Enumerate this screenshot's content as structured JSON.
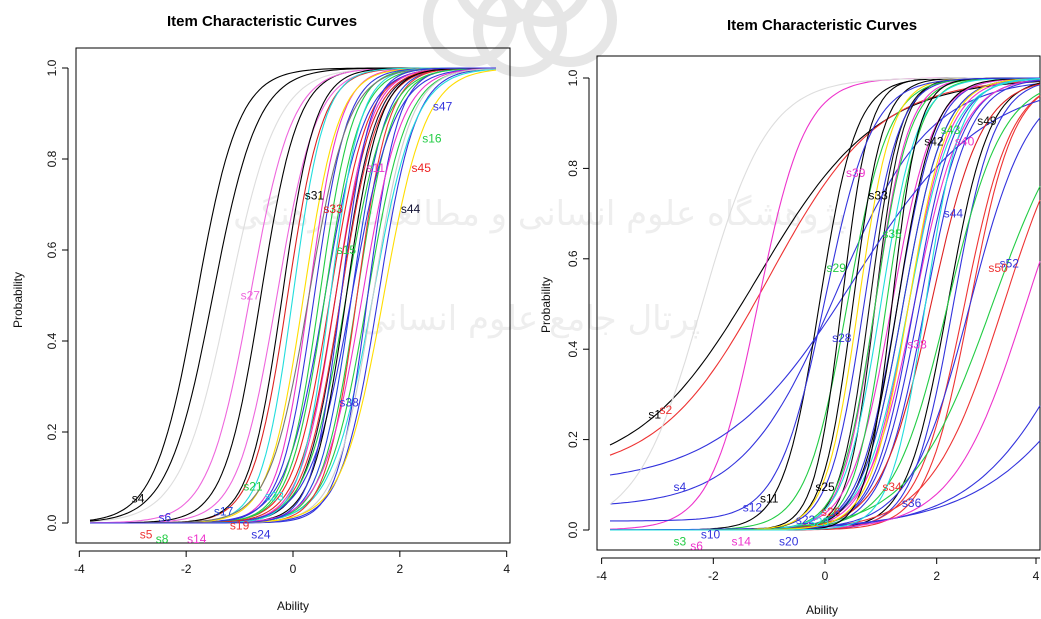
{
  "chart_data": [
    {
      "type": "line",
      "title": "Item Characteristic Curves",
      "xlabel": "Ability",
      "ylabel": "Probability",
      "xlim": [
        -3.8,
        3.8
      ],
      "ylim": [
        0,
        1
      ],
      "xticks": [
        -4,
        -2,
        0,
        2,
        4
      ],
      "yticks": [
        0.0,
        0.2,
        0.4,
        0.6,
        0.8,
        1.0
      ],
      "grid": false,
      "series": [
        {
          "name": "s4",
          "a": 1.5,
          "b": -1.8,
          "c": 0,
          "color": "#000000",
          "label_x": -2.9,
          "label_y": 0.054
        },
        {
          "name": "s27",
          "a": 1.6,
          "b": -0.3,
          "c": 0,
          "color": "#ee66dd",
          "label_x": -0.8,
          "label_y": 0.5
        },
        {
          "name": "s31",
          "a": 1.7,
          "b": -0.6,
          "c": 0,
          "color": "#000000",
          "label_x": 0.4,
          "label_y": 0.72
        },
        {
          "name": "s33",
          "a": 1.8,
          "b": -0.1,
          "c": 0,
          "color": "#dd2222",
          "label_x": 0.75,
          "label_y": 0.69
        },
        {
          "name": "s11",
          "a": 2.0,
          "b": 0.3,
          "c": 0,
          "color": "#ee33cc",
          "label_x": 1.55,
          "label_y": 0.78
        },
        {
          "name": "s44",
          "a": 1.8,
          "b": 0.9,
          "c": 0,
          "color": "#111133",
          "label_x": 2.2,
          "label_y": 0.69
        },
        {
          "name": "s45",
          "a": 1.7,
          "b": 0.7,
          "c": 0,
          "color": "#ee2222",
          "label_x": 2.4,
          "label_y": 0.78
        },
        {
          "name": "s47",
          "a": 1.6,
          "b": 0.6,
          "c": 0,
          "color": "#3333dd",
          "label_x": 2.8,
          "label_y": 0.915
        },
        {
          "name": "s16",
          "a": 1.9,
          "b": 0.5,
          "c": 0,
          "color": "#22cc44",
          "label_x": 2.6,
          "label_y": 0.845
        },
        {
          "name": "s38",
          "a": 1.7,
          "b": 1.6,
          "c": 0,
          "color": "#3333dd",
          "label_x": 1.05,
          "label_y": 0.265
        },
        {
          "name": "s15",
          "a": 1.8,
          "b": 1.2,
          "c": 0,
          "color": "#22cc44",
          "label_x": 1.0,
          "label_y": 0.6
        },
        {
          "name": "s21",
          "a": 1.6,
          "b": 1.4,
          "c": 0,
          "color": "#22cc44",
          "label_x": -0.75,
          "label_y": 0.08
        },
        {
          "name": "s23",
          "a": 1.5,
          "b": 1.5,
          "c": 0,
          "color": "#22dddd",
          "label_x": -0.35,
          "label_y": 0.058
        },
        {
          "name": "s17",
          "a": 1.9,
          "b": 1.1,
          "c": 0,
          "color": "#2244dd",
          "label_x": -1.3,
          "label_y": 0.025
        },
        {
          "name": "s19",
          "a": 2.0,
          "b": 1.2,
          "c": 0,
          "color": "#ee3333",
          "label_x": -1.0,
          "label_y": -0.005
        },
        {
          "name": "s24",
          "a": 2.1,
          "b": 1.4,
          "c": 0,
          "color": "#3333dd",
          "label_x": -0.6,
          "label_y": -0.025
        },
        {
          "name": "s5",
          "a": 1.7,
          "b": 0.9,
          "c": 0,
          "color": "#ee3333",
          "label_x": -2.75,
          "label_y": -0.025
        },
        {
          "name": "s8",
          "a": 1.6,
          "b": 1.0,
          "c": 0,
          "color": "#22cc44",
          "label_x": -2.45,
          "label_y": -0.035
        },
        {
          "name": "s14",
          "a": 1.8,
          "b": 0.8,
          "c": 0,
          "color": "#ee33cc",
          "label_x": -1.8,
          "label_y": -0.035
        },
        {
          "name": "s6",
          "a": 1.5,
          "b": 1.1,
          "c": 0,
          "color": "#3333dd",
          "label_x": -2.4,
          "label_y": 0.012
        },
        {
          "name": "",
          "a": 1.3,
          "b": -1.2,
          "c": 0,
          "color": "#dddddd"
        },
        {
          "name": "",
          "a": 1.5,
          "b": -0.8,
          "c": 0,
          "color": "#ee66dd"
        },
        {
          "name": "",
          "a": 1.4,
          "b": -1.5,
          "c": 0,
          "color": "#000000"
        },
        {
          "name": "",
          "a": 1.9,
          "b": -0.2,
          "c": 0,
          "color": "#000000"
        },
        {
          "name": "",
          "a": 2.0,
          "b": 0.0,
          "c": 0,
          "color": "#22dddd"
        },
        {
          "name": "",
          "a": 1.8,
          "b": 0.2,
          "c": 0,
          "color": "#ffdd00"
        },
        {
          "name": "",
          "a": 1.9,
          "b": 0.4,
          "c": 0,
          "color": "#3333dd"
        },
        {
          "name": "",
          "a": 1.8,
          "b": 0.6,
          "c": 0,
          "color": "#22cc44"
        },
        {
          "name": "",
          "a": 1.7,
          "b": 0.8,
          "c": 0,
          "color": "#dd2222"
        },
        {
          "name": "",
          "a": 1.9,
          "b": 1.0,
          "c": 0,
          "color": "#000000"
        },
        {
          "name": "",
          "a": 1.6,
          "b": 1.3,
          "c": 0,
          "color": "#ee33cc"
        },
        {
          "name": "",
          "a": 1.7,
          "b": 1.5,
          "c": 0,
          "color": "#cccccc"
        },
        {
          "name": "",
          "a": 1.5,
          "b": 1.7,
          "c": 0,
          "color": "#ffdd00"
        },
        {
          "name": "",
          "a": 2.1,
          "b": 0.7,
          "c": 0,
          "color": "#22dddd"
        },
        {
          "name": "",
          "a": 1.6,
          "b": 0.3,
          "c": 0,
          "color": "#777777"
        },
        {
          "name": "",
          "a": 2.2,
          "b": 0.9,
          "c": 0,
          "color": "#3333dd"
        }
      ]
    },
    {
      "type": "line",
      "title": "Item Characteristic Curves",
      "xlabel": "Ability",
      "ylabel": "Probability",
      "xlim": [
        -3.85,
        3.85
      ],
      "ylim": [
        0,
        1
      ],
      "xticks": [
        -4,
        -2,
        0,
        2,
        4
      ],
      "yticks": [
        0.0,
        0.2,
        0.4,
        0.6,
        0.8,
        1.0
      ],
      "grid": false,
      "series": [
        {
          "name": "s1",
          "a": 0.55,
          "b": -1.2,
          "c": 0.12,
          "color": "#000000",
          "label_x": -3.05,
          "label_y": 0.255
        },
        {
          "name": "s2",
          "a": 0.6,
          "b": -1.0,
          "c": 0.12,
          "color": "#ee3333",
          "label_x": -2.85,
          "label_y": 0.265
        },
        {
          "name": "s4",
          "a": 0.7,
          "b": 0.2,
          "c": 0.05,
          "color": "#3333dd",
          "label_x": -2.6,
          "label_y": 0.095
        },
        {
          "name": "s39",
          "a": 1.4,
          "b": -1.2,
          "c": 0,
          "color": "#ee33cc",
          "label_x": 0.55,
          "label_y": 0.79
        },
        {
          "name": "s33",
          "a": 1.8,
          "b": -0.1,
          "c": 0,
          "color": "#000000",
          "label_x": 0.95,
          "label_y": 0.74
        },
        {
          "name": "s42",
          "a": 2.2,
          "b": 0.8,
          "c": 0,
          "color": "#111111",
          "label_x": 1.95,
          "label_y": 0.86
        },
        {
          "name": "s49",
          "a": 2.4,
          "b": 0.9,
          "c": 0,
          "color": "#111111",
          "label_x": 2.9,
          "label_y": 0.905
        },
        {
          "name": "s40",
          "a": 2.0,
          "b": 0.9,
          "c": 0,
          "color": "#ee33cc",
          "label_x": 2.5,
          "label_y": 0.86
        },
        {
          "name": "s44",
          "a": 1.5,
          "b": 1.7,
          "c": 0,
          "color": "#3333dd",
          "label_x": 2.3,
          "label_y": 0.7
        },
        {
          "name": "s52",
          "a": 1.6,
          "b": 2.3,
          "c": 0,
          "color": "#3333dd",
          "label_x": 3.3,
          "label_y": 0.59
        },
        {
          "name": "s50",
          "a": 1.5,
          "b": 2.6,
          "c": 0,
          "color": "#ee3333",
          "label_x": 3.1,
          "label_y": 0.58
        },
        {
          "name": "s35",
          "a": 1.9,
          "b": 0.9,
          "c": 0,
          "color": "#22cc44",
          "label_x": 1.2,
          "label_y": 0.655
        },
        {
          "name": "s28",
          "a": 1.9,
          "b": 0.7,
          "c": 0,
          "color": "#3333dd",
          "label_x": 0.3,
          "label_y": 0.425
        },
        {
          "name": "s38",
          "a": 1.4,
          "b": 1.6,
          "c": 0,
          "color": "#ee33cc",
          "label_x": 1.65,
          "label_y": 0.41
        },
        {
          "name": "s25",
          "a": 1.6,
          "b": 2.2,
          "c": 0,
          "color": "#000000",
          "label_x": 0.0,
          "label_y": 0.095
        },
        {
          "name": "s26",
          "a": 1.4,
          "b": 2.5,
          "c": 0,
          "color": "#ee3333",
          "label_x": 0.1,
          "label_y": 0.04
        },
        {
          "name": "s34",
          "a": 0.9,
          "b": 3.2,
          "c": 0,
          "color": "#ee3333",
          "label_x": 1.2,
          "label_y": 0.095
        },
        {
          "name": "s36",
          "a": 0.6,
          "b": 4.8,
          "c": 0,
          "color": "#3333dd",
          "label_x": 1.55,
          "label_y": 0.06
        },
        {
          "name": "s10",
          "a": 1.7,
          "b": 1.3,
          "c": 0,
          "color": "#3333dd",
          "label_x": -2.05,
          "label_y": -0.01
        },
        {
          "name": "s14",
          "a": 1.6,
          "b": 1.5,
          "c": 0,
          "color": "#ee33cc",
          "label_x": -1.5,
          "label_y": -0.025
        },
        {
          "name": "s20",
          "a": 1.5,
          "b": 1.8,
          "c": 0,
          "color": "#3333dd",
          "label_x": -0.65,
          "label_y": -0.025
        },
        {
          "name": "s22",
          "a": 1.6,
          "b": 1.6,
          "c": 0,
          "color": "#3333dd",
          "label_x": -0.35,
          "label_y": 0.022
        },
        {
          "name": "s23",
          "a": 1.5,
          "b": 1.5,
          "c": 0,
          "color": "#22dddd",
          "label_x": -0.1,
          "label_y": 0.018
        },
        {
          "name": "s3",
          "a": 1.6,
          "b": 1.4,
          "c": 0,
          "color": "#22cc44",
          "label_x": -2.6,
          "label_y": -0.025
        },
        {
          "name": "s6",
          "a": 1.6,
          "b": 1.2,
          "c": 0,
          "color": "#ee33cc",
          "label_x": -2.3,
          "label_y": -0.035
        },
        {
          "name": "s11",
          "a": 1.8,
          "b": 1.3,
          "c": 0,
          "color": "#000000",
          "label_x": -1.0,
          "label_y": 0.07
        },
        {
          "name": "s12",
          "a": 1.6,
          "b": 1.4,
          "c": 0,
          "color": "#3333dd",
          "label_x": -1.3,
          "label_y": 0.05
        },
        {
          "name": "s29",
          "a": 1.6,
          "b": 0.4,
          "c": 0,
          "color": "#22cc44",
          "label_x": 0.2,
          "label_y": 0.58
        },
        {
          "name": "s43",
          "a": 2.0,
          "b": 1.1,
          "c": 0,
          "color": "#22cc44",
          "label_x": 2.25,
          "label_y": 0.885
        },
        {
          "name": "",
          "a": 0.5,
          "b": 0.5,
          "c": 0.1,
          "color": "#3333dd"
        },
        {
          "name": "",
          "a": 0.8,
          "b": 3.0,
          "c": 0,
          "color": "#22cc44"
        },
        {
          "name": "",
          "a": 0.5,
          "b": 5.5,
          "c": 0,
          "color": "#3333dd"
        },
        {
          "name": "",
          "a": 0.9,
          "b": 3.6,
          "c": 0,
          "color": "#ee33cc"
        },
        {
          "name": "",
          "a": 2.4,
          "b": 0.3,
          "c": 0,
          "color": "#000000"
        },
        {
          "name": "",
          "a": 2.2,
          "b": 0.5,
          "c": 0,
          "color": "#000000"
        },
        {
          "name": "",
          "a": 2.0,
          "b": 0.6,
          "c": 0,
          "color": "#ffdd00"
        },
        {
          "name": "",
          "a": 1.8,
          "b": 1.0,
          "c": 0,
          "color": "#22dddd"
        },
        {
          "name": "",
          "a": 1.3,
          "b": 1.9,
          "c": 0,
          "color": "#dd2222"
        },
        {
          "name": "",
          "a": 1.1,
          "b": 2.6,
          "c": 0,
          "color": "#3333dd"
        },
        {
          "name": "",
          "a": 1.2,
          "b": 2.2,
          "c": 0,
          "color": "#22cc44"
        },
        {
          "name": "",
          "a": 1.0,
          "b": -2.2,
          "c": 0,
          "color": "#dddddd"
        },
        {
          "name": "",
          "a": 2.5,
          "b": 1.2,
          "c": 0,
          "color": "#000000"
        },
        {
          "name": "",
          "a": 1.7,
          "b": 1.5,
          "c": 0,
          "color": "#ffdd00"
        },
        {
          "name": "",
          "a": 1.4,
          "b": 0.0,
          "c": 0.02,
          "color": "#3333dd"
        },
        {
          "name": "",
          "a": 1.9,
          "b": 1.8,
          "c": 0,
          "color": "#22dddd"
        }
      ]
    }
  ],
  "watermark": {
    "line1": "پژوهشگاه علوم انسانی و مطالعات فرهنگی",
    "line2": "پرتال جامع علوم انسانی",
    "color": "#d8d8d8"
  }
}
